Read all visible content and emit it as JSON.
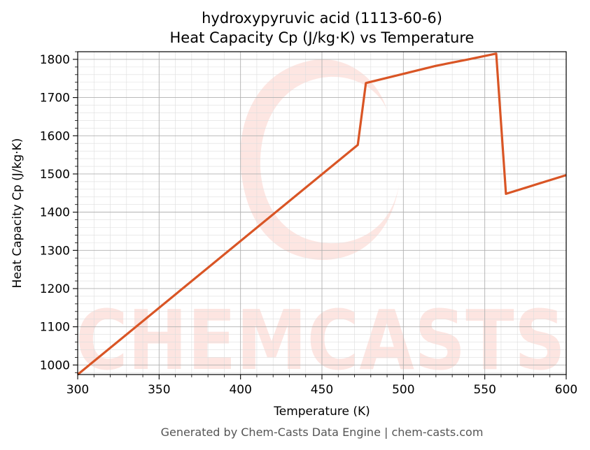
{
  "chart_data": {
    "type": "line",
    "title_line1": "hydroxypyruvic acid (1113-60-6)",
    "title_line2": "Heat Capacity Cp (J/kg·K) vs Temperature",
    "xlabel": "Temperature (K)",
    "ylabel": "Heat Capacity Cp (J/kg·K)",
    "xlim": [
      300,
      600
    ],
    "ylim": [
      975,
      1820
    ],
    "xticks": [
      300,
      350,
      400,
      450,
      500,
      550,
      600
    ],
    "yticks": [
      1000,
      1100,
      1200,
      1300,
      1400,
      1500,
      1600,
      1700,
      1800
    ],
    "grid": true,
    "series": [
      {
        "color": "#d95525",
        "points": [
          [
            300,
            975
          ],
          [
            472,
            1576
          ],
          [
            477,
            1738
          ],
          [
            500,
            1762
          ],
          [
            520,
            1783
          ],
          [
            540,
            1800
          ],
          [
            557,
            1815
          ],
          [
            563,
            1448
          ],
          [
            600,
            1497
          ]
        ]
      }
    ]
  },
  "footer": "Generated by Chem-Casts Data Engine | chem-casts.com",
  "watermark": "CHEMCASTS"
}
